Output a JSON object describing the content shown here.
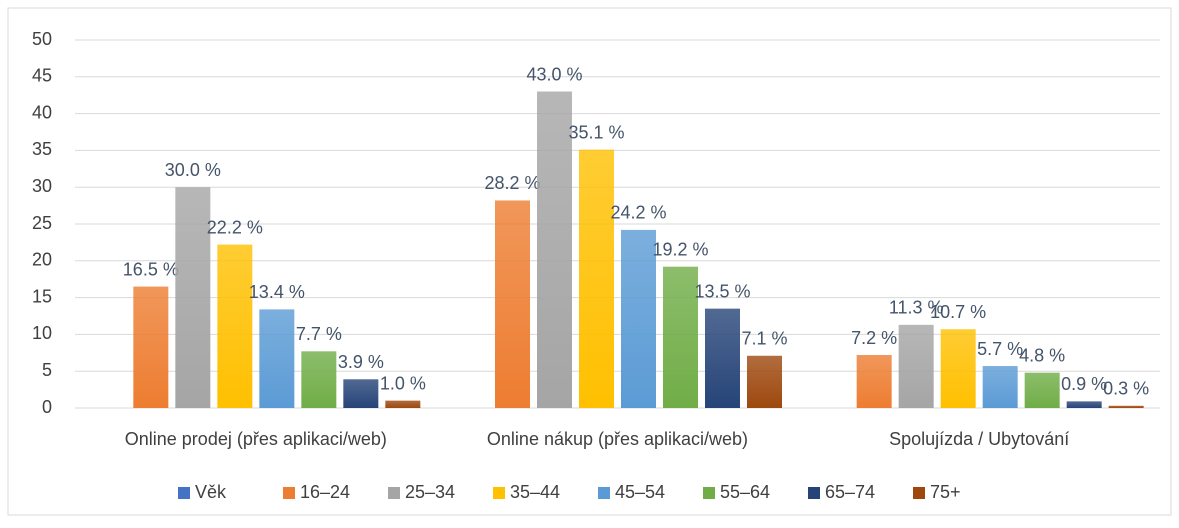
{
  "chart_data": {
    "type": "bar",
    "categories": [
      "Online prodej (přes aplikaci/web)",
      "Online nákup (přes aplikaci/web)",
      "Spolujízda / Ubytování"
    ],
    "series": [
      {
        "name": "Věk",
        "color": "#4472c4",
        "values": [
          null,
          null,
          null
        ]
      },
      {
        "name": "16–24",
        "color": "#ed7d31",
        "values": [
          16.5,
          28.2,
          7.2
        ],
        "value_labels": [
          "16.5 %",
          "28.2 %",
          "7.2 %"
        ]
      },
      {
        "name": "25–34",
        "color": "#a5a5a5",
        "values": [
          30.0,
          43.0,
          11.3
        ],
        "value_labels": [
          "30.0 %",
          "43.0 %",
          "11.3 %"
        ]
      },
      {
        "name": "35–44",
        "color": "#ffc000",
        "values": [
          22.2,
          35.1,
          10.7
        ],
        "value_labels": [
          "22.2 %",
          "35.1 %",
          "10.7 %"
        ]
      },
      {
        "name": "45–54",
        "color": "#5b9bd5",
        "values": [
          13.4,
          24.2,
          5.7
        ],
        "value_labels": [
          "13.4 %",
          "24.2 %",
          "5.7 %"
        ]
      },
      {
        "name": "55–64",
        "color": "#70ad47",
        "values": [
          7.7,
          19.2,
          4.8
        ],
        "value_labels": [
          "7.7 %",
          "19.2 %",
          "4.8 %"
        ]
      },
      {
        "name": "65–74",
        "color": "#264478",
        "values": [
          3.9,
          13.5,
          0.9
        ],
        "value_labels": [
          "3.9 %",
          "13.5 %",
          "0.9 %"
        ]
      },
      {
        "name": "75+",
        "color": "#9e480e",
        "values": [
          1.0,
          7.1,
          0.3
        ],
        "value_labels": [
          "1.0 %",
          "7.1 %",
          "0.3 %"
        ]
      }
    ],
    "ylim": [
      0,
      50
    ],
    "yticks": [
      0,
      5,
      10,
      15,
      20,
      25,
      30,
      35,
      40,
      45,
      50
    ],
    "grid": true,
    "legend": "bottom"
  }
}
